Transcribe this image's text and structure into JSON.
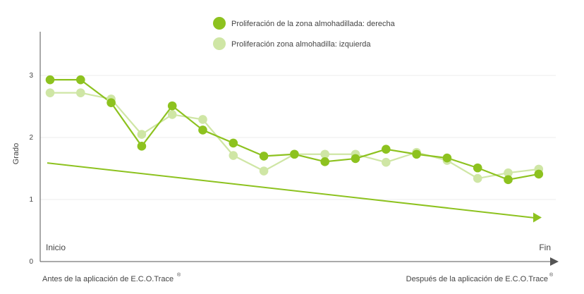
{
  "chart_data": {
    "type": "line",
    "title": "",
    "xlabel": "",
    "ylabel": "Grado",
    "ylim": [
      0,
      3.7
    ],
    "yticks": [
      0,
      1,
      2,
      3
    ],
    "grid": true,
    "legend_position": "top-center",
    "x_start_label": "Inicio",
    "x_end_label": "Fin",
    "before_label": "Antes de la aplicación de E.C.O.Trace",
    "after_label": "Después de la aplicación de E.C.O.Trace",
    "trademark": "®",
    "series": [
      {
        "name": "Proliferación de la zona almohadillada: derecha",
        "color": "#8dc21f",
        "values": [
          2.93,
          2.93,
          2.56,
          1.86,
          2.51,
          2.12,
          1.91,
          1.7,
          1.73,
          1.61,
          1.66,
          1.81,
          1.73,
          1.67,
          1.51,
          1.32,
          1.41
        ]
      },
      {
        "name": "Proliferación zona almohadilla: izquierda",
        "color": "#cfe6a5",
        "values": [
          2.72,
          2.72,
          2.62,
          2.05,
          2.37,
          2.29,
          1.71,
          1.46,
          1.73,
          1.73,
          1.73,
          1.6,
          1.76,
          1.63,
          1.34,
          1.43,
          1.49
        ]
      }
    ],
    "trend": {
      "color": "#8dc21f",
      "start": 1.59,
      "end": 0.71
    }
  }
}
